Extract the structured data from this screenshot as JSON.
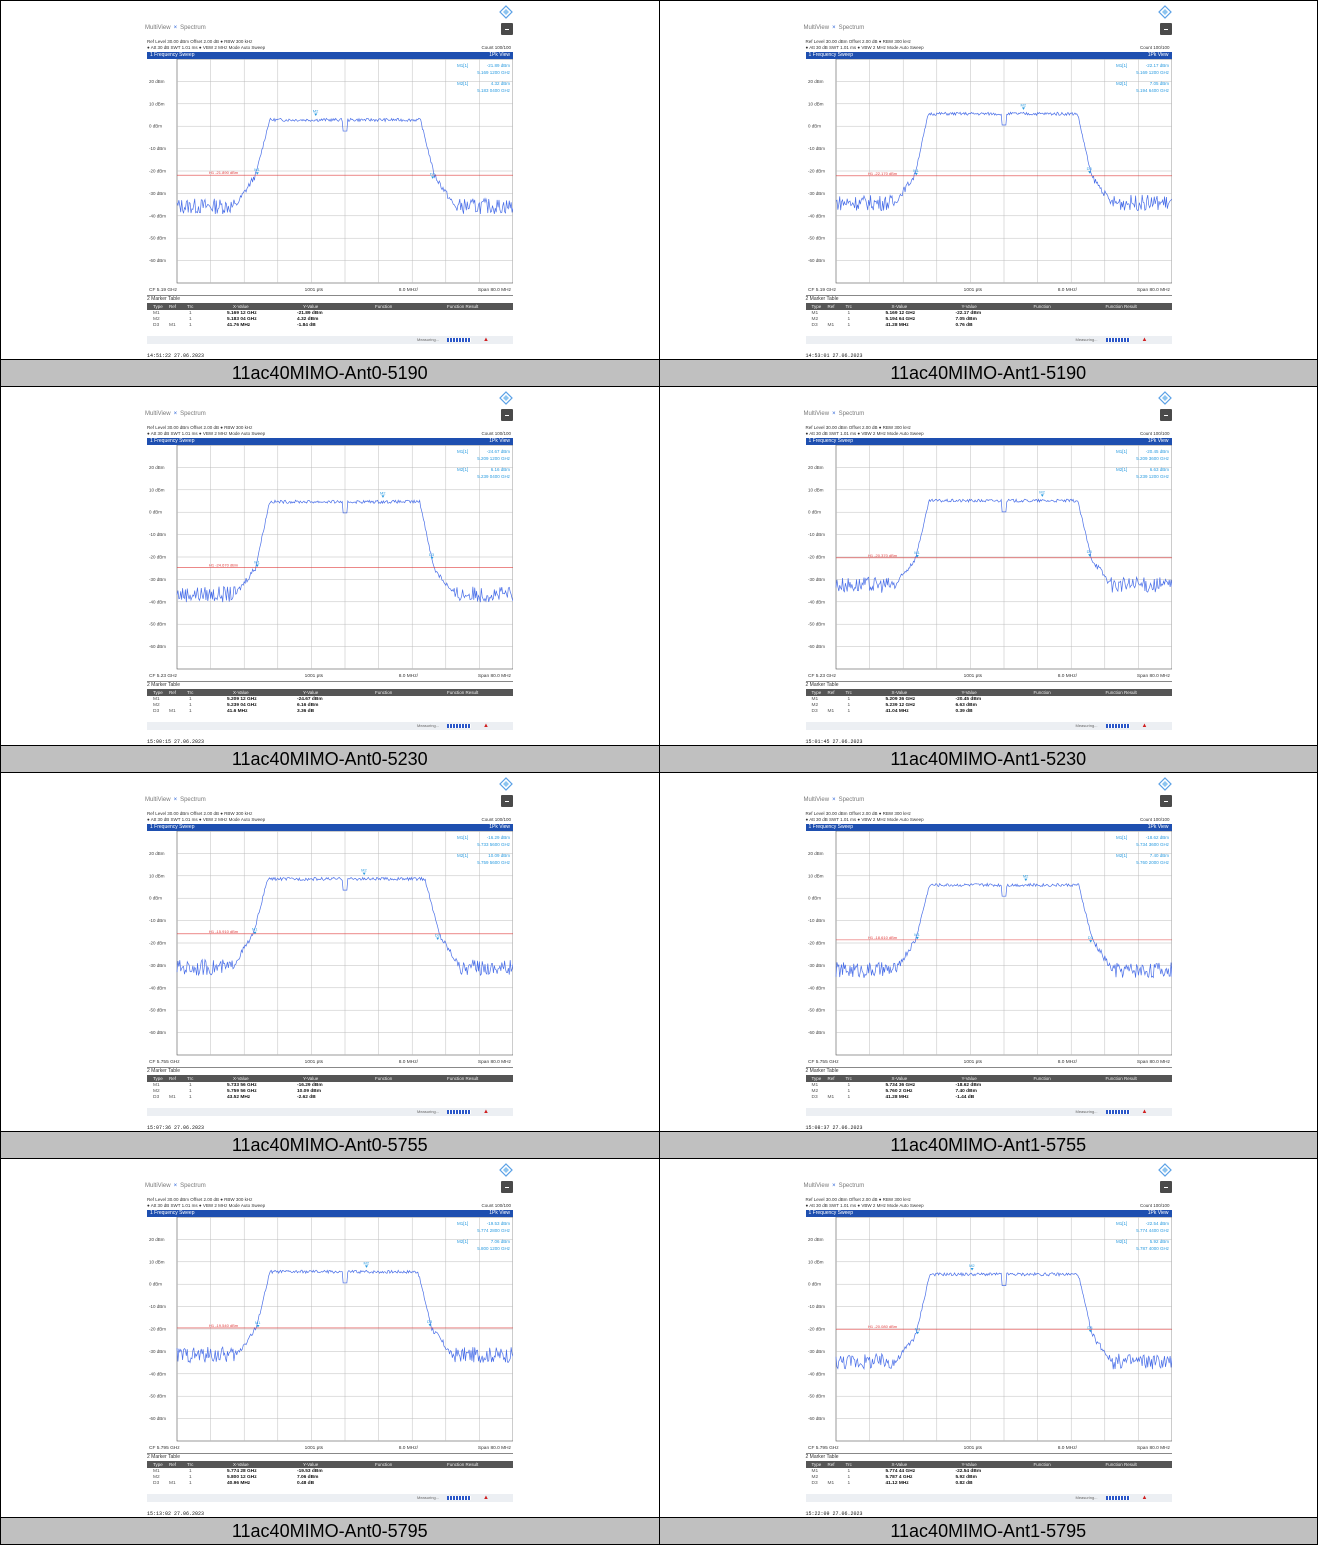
{
  "header": {
    "tab_multiview": "MultiView",
    "tab_spectrum": "Spectrum",
    "settings_line1": "Ref Level 30.00 dBm   Offset 2.00 dB ● RBW 300 kHz",
    "settings_line2": "● Att          30 dB   SWT   1.01 ms ● VBW    2 MHz   Mode Auto Sweep",
    "count": "Count 100/100",
    "trace_title": "1 Frequency Sweep",
    "trace_view": "1Pk View",
    "pts": "1001 pts",
    "div": "8.0 MHz/",
    "span": "Span 80.0 MHz",
    "marker_table_title": "2 Marker Table",
    "col_type": "Type",
    "col_ref": "Ref",
    "col_trc": "Trc",
    "col_x": "X-Value",
    "col_y": "Y-Value",
    "col_fn": "Function",
    "col_fr": "Function Result",
    "measuring": "Measuring...",
    "y_ticks": [
      "20 dBm",
      "10 dBm",
      "0 dBm",
      "-10 dBm",
      "-20 dBm",
      "-30 dBm",
      "-40 dBm",
      "-50 dBm",
      "-60 dBm"
    ]
  },
  "colors": {
    "trace": "#4a6fe8",
    "threshold": "#e04040",
    "header": "#1e4fb0",
    "marker": "#2a9be0"
  },
  "chart_data": [
    {
      "type": "line",
      "caption": "11ac40MIMO-Ant0-5190",
      "cf": "CF 5.19 GHz",
      "cf_ghz": 5.19,
      "span_mhz": 80,
      "ylim": [
        -70,
        30
      ],
      "threshold": {
        "label": "H1 -21.890 dBm",
        "value": -21.89
      },
      "markers": [
        {
          "name": "M1",
          "trc": "1",
          "x": "5.169 12 GHz",
          "y": "-21.89 dBm",
          "freq_ghz": 5.16912,
          "level": -21.89
        },
        {
          "name": "M2",
          "trc": "1",
          "x": "5.183 04 GHz",
          "y": "4.32 dBm",
          "freq_ghz": 5.18304,
          "level": 4.32
        },
        {
          "name": "D3",
          "ref": "M1",
          "trc": "1",
          "x": "41.76 MHz",
          "y": "-1.84 dB",
          "freq_ghz": 5.21088,
          "level": -23.73
        }
      ],
      "readout": [
        {
          "label": "M1[1]",
          "value": "-21.89 dBm",
          "freq": "5.169 1200 GHz"
        },
        {
          "label": "M2[1]",
          "value": "4.32 dBm",
          "freq": "5.183 0400 GHz"
        }
      ],
      "timestamp": "14:51:22  27.06.2023"
    },
    {
      "type": "line",
      "caption": "11ac40MIMO-Ant1-5190",
      "cf": "CF 5.19 GHz",
      "cf_ghz": 5.19,
      "span_mhz": 80,
      "ylim": [
        -70,
        30
      ],
      "threshold": {
        "label": "H1 -22.170 dBm",
        "value": -22.17
      },
      "markers": [
        {
          "name": "M1",
          "trc": "1",
          "x": "5.169 12 GHz",
          "y": "-22.17 dBm",
          "freq_ghz": 5.16912,
          "level": -22.17
        },
        {
          "name": "M2",
          "trc": "1",
          "x": "5.194 64 GHz",
          "y": "7.05 dBm",
          "freq_ghz": 5.19464,
          "level": 7.05
        },
        {
          "name": "D3",
          "ref": "M1",
          "trc": "1",
          "x": "41.28 MHz",
          "y": "0.76 dB",
          "freq_ghz": 5.2104,
          "level": -21.41
        }
      ],
      "readout": [
        {
          "label": "M1[1]",
          "value": "-22.17 dBm",
          "freq": "5.169 1200 GHz"
        },
        {
          "label": "M2[1]",
          "value": "7.05 dBm",
          "freq": "5.194 6400 GHz"
        }
      ],
      "timestamp": "14:53:01  27.06.2023"
    },
    {
      "type": "line",
      "caption": "11ac40MIMO-Ant0-5230",
      "cf": "CF 5.23 GHz",
      "cf_ghz": 5.23,
      "span_mhz": 80,
      "ylim": [
        -70,
        30
      ],
      "threshold": {
        "label": "H1 -24.670 dBm",
        "value": -24.67
      },
      "markers": [
        {
          "name": "M1",
          "trc": "1",
          "x": "5.209 12 GHz",
          "y": "-24.67 dBm",
          "freq_ghz": 5.20912,
          "level": -24.67
        },
        {
          "name": "M2",
          "trc": "1",
          "x": "5.239 04 GHz",
          "y": "6.16 dBm",
          "freq_ghz": 5.23904,
          "level": 6.16
        },
        {
          "name": "D3",
          "ref": "M1",
          "trc": "1",
          "x": "41.6 MHz",
          "y": "3.36 dB",
          "freq_ghz": 5.25072,
          "level": -21.31
        }
      ],
      "readout": [
        {
          "label": "M1[1]",
          "value": "-24.67 dBm",
          "freq": "5.209 1200 GHz"
        },
        {
          "label": "M2[1]",
          "value": "6.16 dBm",
          "freq": "5.239 0400 GHz"
        }
      ],
      "timestamp": "15:00:15  27.06.2023"
    },
    {
      "type": "line",
      "caption": "11ac40MIMO-Ant1-5230",
      "cf": "CF 5.23 GHz",
      "cf_ghz": 5.23,
      "span_mhz": 80,
      "ylim": [
        -70,
        30
      ],
      "threshold": {
        "label": "H1 -20.370 dBm",
        "value": -20.37
      },
      "markers": [
        {
          "name": "M1",
          "trc": "1",
          "x": "5.209 36 GHz",
          "y": "-20.45 dBm",
          "freq_ghz": 5.20936,
          "level": -20.45
        },
        {
          "name": "M2",
          "trc": "1",
          "x": "5.239 12 GHz",
          "y": "6.63 dBm",
          "freq_ghz": 5.23912,
          "level": 6.63
        },
        {
          "name": "D3",
          "ref": "M1",
          "trc": "1",
          "x": "41.04 MHz",
          "y": "0.39 dB",
          "freq_ghz": 5.2504,
          "level": -20.06
        }
      ],
      "readout": [
        {
          "label": "M1[1]",
          "value": "-20.45 dBm",
          "freq": "5.209 3600 GHz"
        },
        {
          "label": "M2[1]",
          "value": "6.63 dBm",
          "freq": "5.239 1200 GHz"
        }
      ],
      "timestamp": "15:01:45  27.06.2023"
    },
    {
      "type": "line",
      "caption": "11ac40MIMO-Ant0-5755",
      "cf": "CF 5.755 GHz",
      "cf_ghz": 5.755,
      "span_mhz": 80,
      "ylim": [
        -70,
        30
      ],
      "threshold": {
        "label": "H1 -15.910 dBm",
        "value": -15.91
      },
      "markers": [
        {
          "name": "M1",
          "trc": "1",
          "x": "5.733 56 GHz",
          "y": "-16.29 dBm",
          "freq_ghz": 5.73356,
          "level": -16.29
        },
        {
          "name": "M2",
          "trc": "1",
          "x": "5.759 56 GHz",
          "y": "10.09 dBm",
          "freq_ghz": 5.75956,
          "level": 10.09
        },
        {
          "name": "D3",
          "ref": "M1",
          "trc": "1",
          "x": "43.52 MHz",
          "y": "-2.62 dB",
          "freq_ghz": 5.77708,
          "level": -18.91
        }
      ],
      "readout": [
        {
          "label": "M1[1]",
          "value": "-16.29 dBm",
          "freq": "5.733 5600 GHz"
        },
        {
          "label": "M2[1]",
          "value": "10.09 dBm",
          "freq": "5.759 5600 GHz"
        }
      ],
      "timestamp": "15:07:36  27.06.2023"
    },
    {
      "type": "line",
      "caption": "11ac40MIMO-Ant1-5755",
      "cf": "CF 5.755 GHz",
      "cf_ghz": 5.755,
      "span_mhz": 80,
      "ylim": [
        -70,
        30
      ],
      "threshold": {
        "label": "H1 -18.610 dBm",
        "value": -18.61
      },
      "markers": [
        {
          "name": "M1",
          "trc": "1",
          "x": "5.734 36 GHz",
          "y": "-18.62 dBm",
          "freq_ghz": 5.73436,
          "level": -18.62
        },
        {
          "name": "M2",
          "trc": "1",
          "x": "5.760 2 GHz",
          "y": "7.40 dBm",
          "freq_ghz": 5.7602,
          "level": 7.4
        },
        {
          "name": "D3",
          "ref": "M1",
          "trc": "1",
          "x": "41.28 MHz",
          "y": "-1.44 dB",
          "freq_ghz": 5.77564,
          "level": -20.06
        }
      ],
      "readout": [
        {
          "label": "M1[1]",
          "value": "-18.62 dBm",
          "freq": "5.734 3600 GHz"
        },
        {
          "label": "M2[1]",
          "value": "7.40 dBm",
          "freq": "5.760 2000 GHz"
        }
      ],
      "timestamp": "15:08:37  27.06.2023"
    },
    {
      "type": "line",
      "caption": "11ac40MIMO-Ant0-5795",
      "cf": "CF 5.795 GHz",
      "cf_ghz": 5.795,
      "span_mhz": 80,
      "ylim": [
        -70,
        30
      ],
      "threshold": {
        "label": "H1 -19.540 dBm",
        "value": -19.54
      },
      "markers": [
        {
          "name": "M1",
          "trc": "1",
          "x": "5.774 28 GHz",
          "y": "-19.53 dBm",
          "freq_ghz": 5.77428,
          "level": -19.53
        },
        {
          "name": "M2",
          "trc": "1",
          "x": "5.800 12 GHz",
          "y": "7.06 dBm",
          "freq_ghz": 5.80012,
          "level": 7.06
        },
        {
          "name": "D3",
          "ref": "M1",
          "trc": "1",
          "x": "40.96 MHz",
          "y": "0.48 dB",
          "freq_ghz": 5.81524,
          "level": -19.05
        }
      ],
      "readout": [
        {
          "label": "M1[1]",
          "value": "-19.53 dBm",
          "freq": "5.774 2800 GHz"
        },
        {
          "label": "M2[1]",
          "value": "7.06 dBm",
          "freq": "5.800 1200 GHz"
        }
      ],
      "timestamp": "15:13:02  27.06.2023"
    },
    {
      "type": "line",
      "caption": "11ac40MIMO-Ant1-5795",
      "cf": "CF 5.795 GHz",
      "cf_ghz": 5.795,
      "span_mhz": 80,
      "ylim": [
        -70,
        30
      ],
      "threshold": {
        "label": "H1 -20.080 dBm",
        "value": -20.08
      },
      "markers": [
        {
          "name": "M1",
          "trc": "1",
          "x": "5.774 44 GHz",
          "y": "-22.54 dBm",
          "freq_ghz": 5.77444,
          "level": -22.54
        },
        {
          "name": "M2",
          "trc": "1",
          "x": "5.787 4 GHz",
          "y": "5.92 dBm",
          "freq_ghz": 5.7874,
          "level": 5.92
        },
        {
          "name": "D3",
          "ref": "M1",
          "trc": "1",
          "x": "41.12 MHz",
          "y": "0.82 dB",
          "freq_ghz": 5.81556,
          "level": -21.72
        }
      ],
      "readout": [
        {
          "label": "M1[1]",
          "value": "-22.54 dBm",
          "freq": "5.774 4400 GHz"
        },
        {
          "label": "M2[1]",
          "value": "5.92 dBm",
          "freq": "5.787 4000 GHz"
        }
      ],
      "timestamp": "15:22:09  27.06.2023"
    }
  ]
}
